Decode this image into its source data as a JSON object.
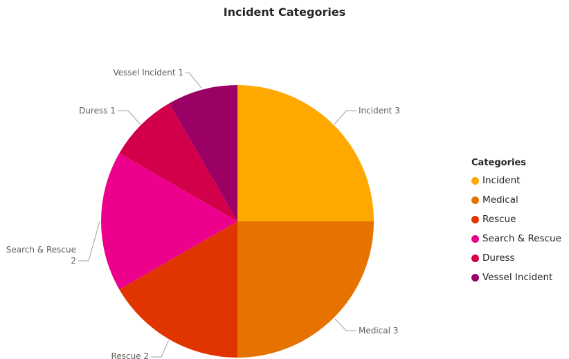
{
  "chart_data": {
    "type": "pie",
    "title": "Incident Categories",
    "legend_title": "Categories",
    "legend_position": "right",
    "categories": [
      "Incident",
      "Medical",
      "Rescue",
      "Search & Rescue",
      "Duress",
      "Vessel Incident"
    ],
    "values": [
      3,
      3,
      2,
      2,
      1,
      1
    ],
    "colors": [
      "#FFA800",
      "#E67300",
      "#E03500",
      "#EC008C",
      "#D2004B",
      "#9B0064"
    ],
    "slice_labels": [
      [
        "Incident 3"
      ],
      [
        "Medical 3"
      ],
      [
        "Rescue 2"
      ],
      [
        "Search & Rescue",
        "2"
      ],
      [
        "Duress 1"
      ],
      [
        "Vessel Incident 1"
      ]
    ]
  }
}
